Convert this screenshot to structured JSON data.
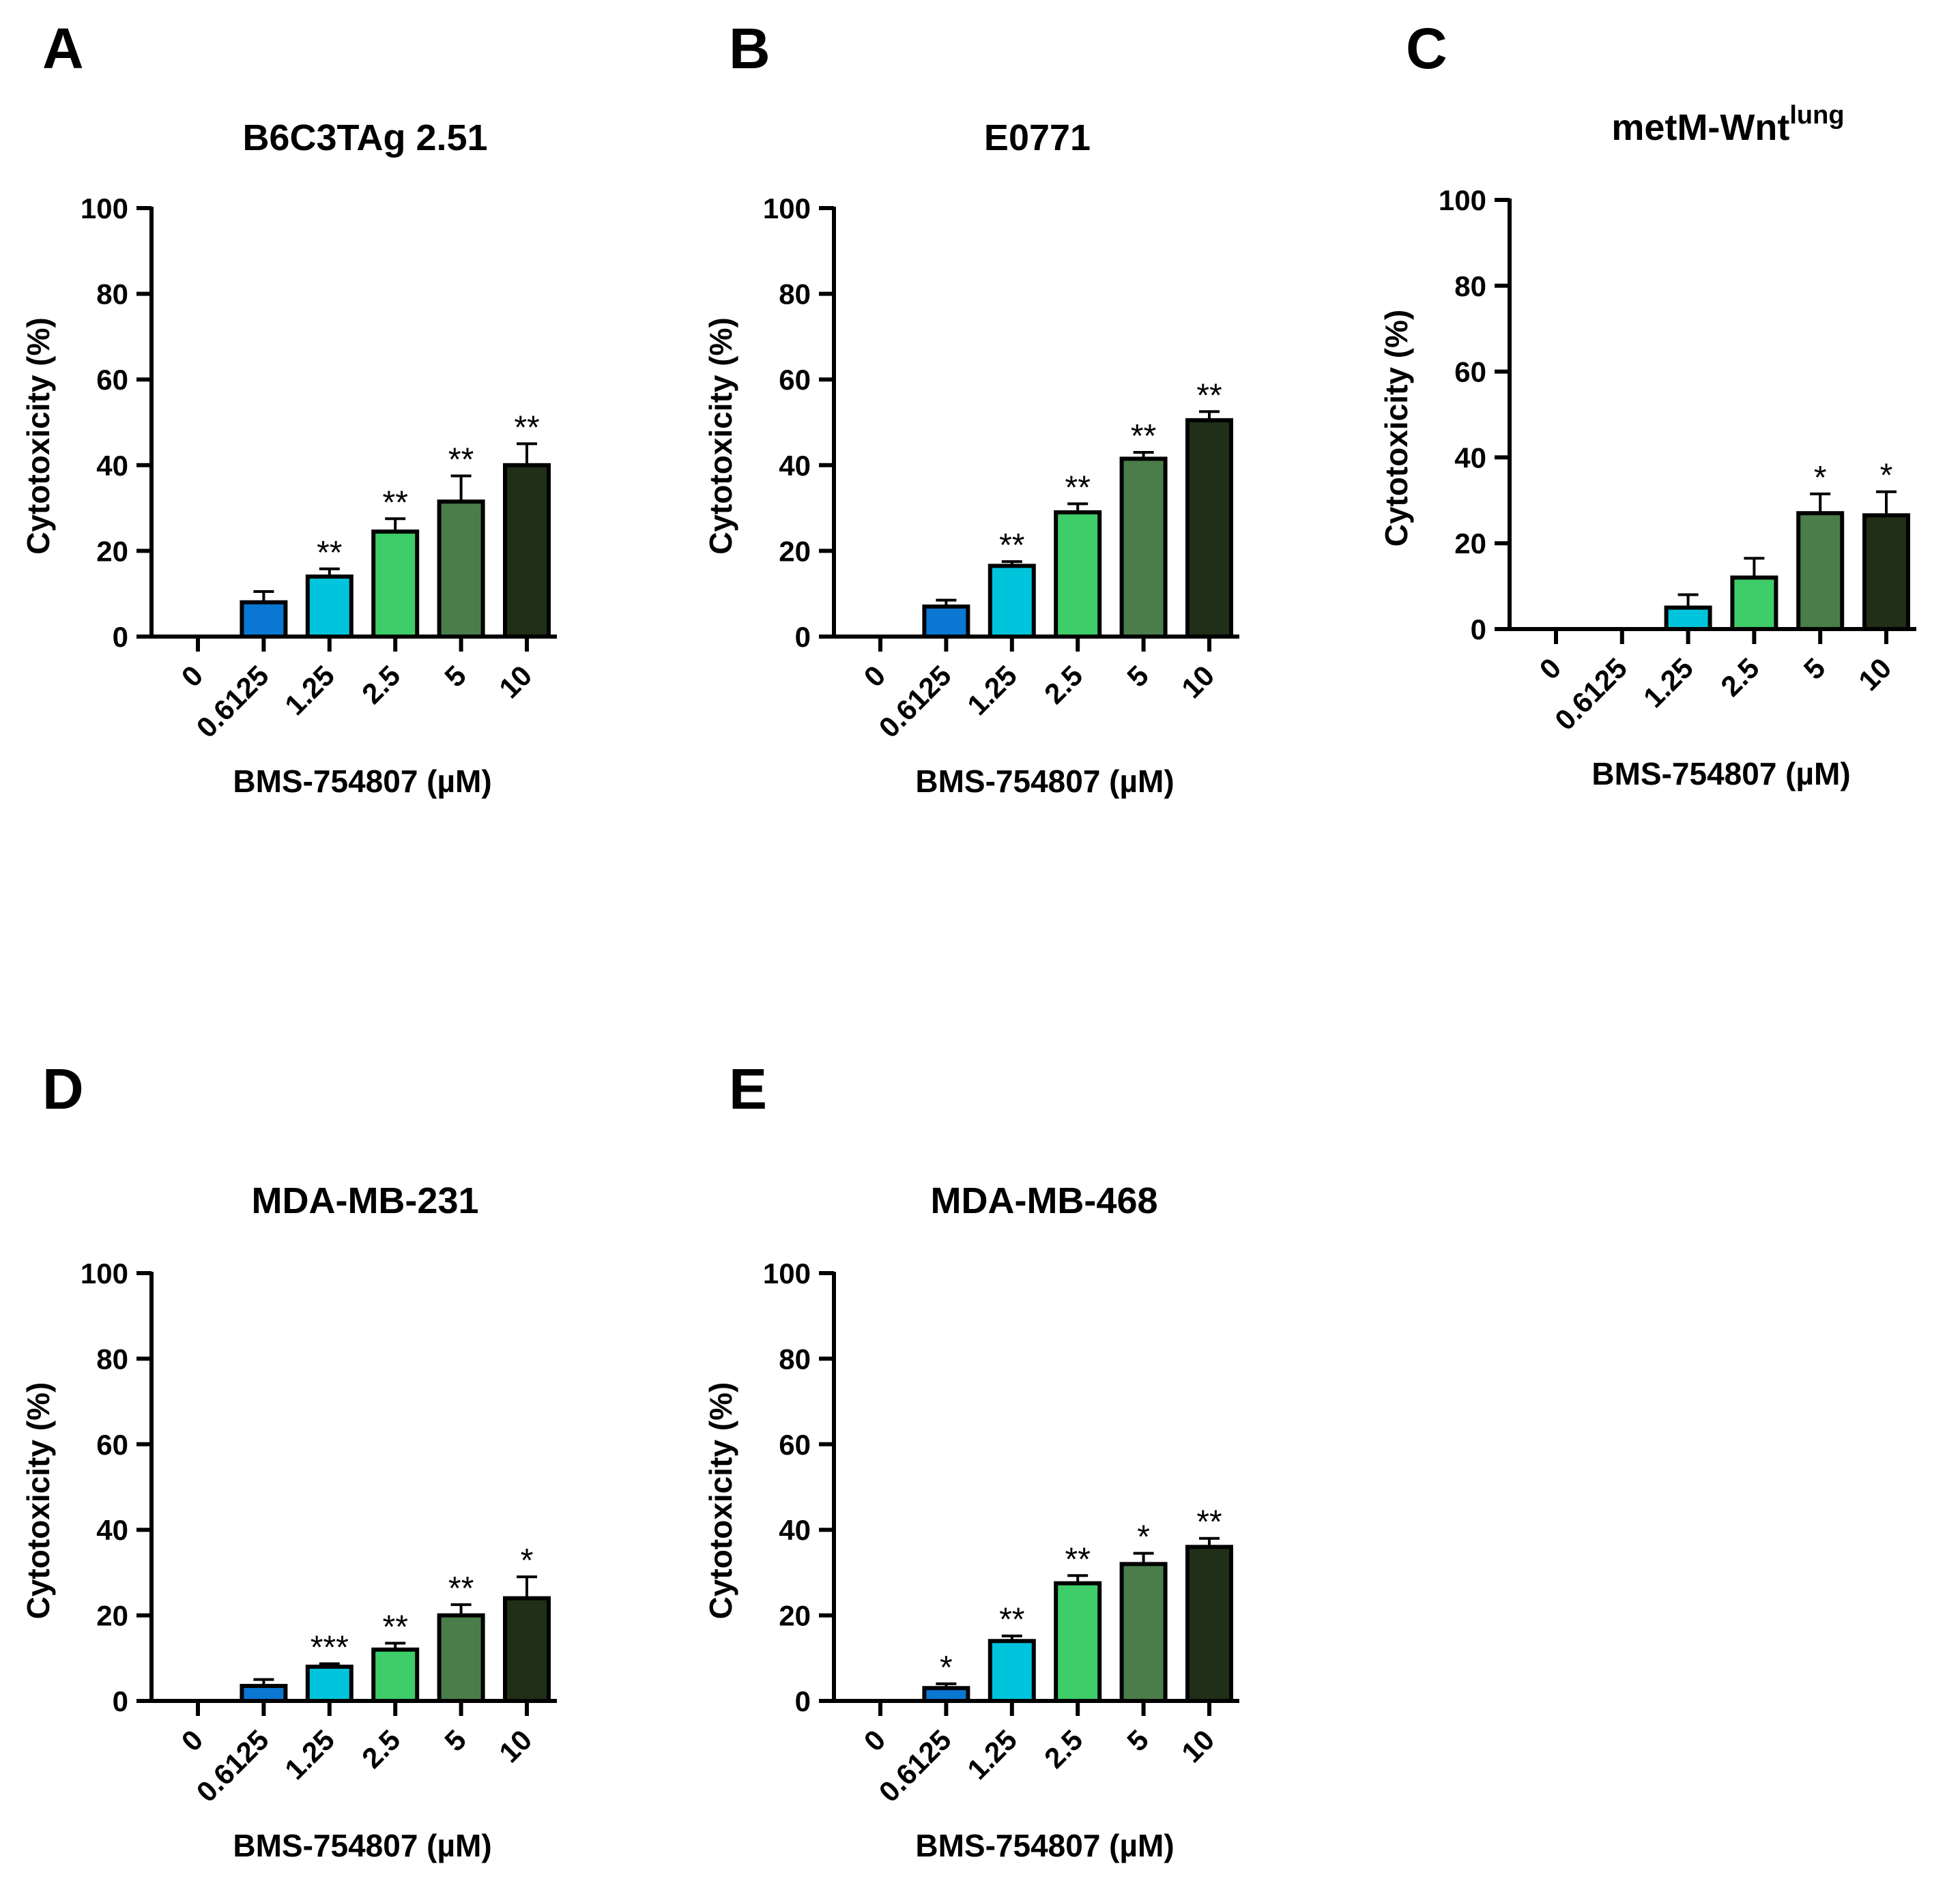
{
  "chart_data": [
    {
      "panel": "A",
      "type": "bar",
      "title": "B6C3TAg 2.51",
      "xlabel": "BMS-754807 (µM)",
      "ylabel": "Cytotoxicity (%)",
      "ylim": [
        0,
        100
      ],
      "yticks": [
        0,
        20,
        40,
        60,
        80,
        100
      ],
      "categories": [
        "0",
        "0.6125",
        "1.25",
        "2.5",
        "5",
        "10"
      ],
      "values": [
        0,
        8,
        14,
        24.5,
        31.5,
        40
      ],
      "errors": [
        0,
        2.5,
        1.8,
        3,
        6,
        5
      ],
      "significance": [
        "",
        "",
        "**",
        "**",
        "**",
        "**"
      ]
    },
    {
      "panel": "B",
      "type": "bar",
      "title": "E0771",
      "xlabel": "BMS-754807 (µM)",
      "ylabel": "Cytotoxicity (%)",
      "ylim": [
        0,
        100
      ],
      "yticks": [
        0,
        20,
        40,
        60,
        80,
        100
      ],
      "categories": [
        "0",
        "0.6125",
        "1.25",
        "2.5",
        "5",
        "10"
      ],
      "values": [
        0,
        7,
        16.5,
        29,
        41.5,
        50.5
      ],
      "errors": [
        0,
        1.5,
        1,
        2,
        1.5,
        2
      ],
      "significance": [
        "",
        "",
        "**",
        "**",
        "**",
        "**"
      ]
    },
    {
      "panel": "C",
      "type": "bar",
      "title": "metM-Wnt",
      "title_sup": "lung",
      "xlabel": "BMS-754807 (µM)",
      "ylabel": "Cytotoxicity (%)",
      "ylim": [
        0,
        100
      ],
      "yticks": [
        0,
        20,
        40,
        60,
        80,
        100
      ],
      "categories": [
        "0",
        "0.6125",
        "1.25",
        "2.5",
        "5",
        "10"
      ],
      "values": [
        0,
        0,
        5,
        12,
        27,
        26.5
      ],
      "errors": [
        0,
        0,
        3,
        4.5,
        4.5,
        5.5
      ],
      "significance": [
        "",
        "",
        "",
        "",
        "*",
        "*"
      ]
    },
    {
      "panel": "D",
      "type": "bar",
      "title": "MDA-MB-231",
      "xlabel": "BMS-754807 (µM)",
      "ylabel": "Cytotoxicity (%)",
      "ylim": [
        0,
        100
      ],
      "yticks": [
        0,
        20,
        40,
        60,
        80,
        100
      ],
      "categories": [
        "0",
        "0.6125",
        "1.25",
        "2.5",
        "5",
        "10"
      ],
      "values": [
        0,
        3.5,
        8,
        12,
        20,
        24
      ],
      "errors": [
        0,
        1.5,
        0.7,
        1.5,
        2.5,
        5
      ],
      "significance": [
        "",
        "",
        "***",
        "**",
        "**",
        "*"
      ]
    },
    {
      "panel": "E",
      "type": "bar",
      "title": "MDA-MB-468",
      "xlabel": "BMS-754807 (µM)",
      "ylabel": "Cytotoxicity (%)",
      "ylim": [
        0,
        100
      ],
      "yticks": [
        0,
        20,
        40,
        60,
        80,
        100
      ],
      "categories": [
        "0",
        "0.6125",
        "1.25",
        "2.5",
        "5",
        "10"
      ],
      "values": [
        0,
        3,
        14,
        27.5,
        32,
        36
      ],
      "errors": [
        0,
        1,
        1.2,
        1.8,
        2.5,
        2
      ],
      "significance": [
        "",
        "*",
        "**",
        "**",
        "*",
        "**"
      ]
    }
  ],
  "colors": {
    "bars": [
      "#ffffff",
      "#0a78d2",
      "#00c4dc",
      "#3ecd68",
      "#4a7d4a",
      "#1f2f18"
    ],
    "axis": "#000000"
  }
}
